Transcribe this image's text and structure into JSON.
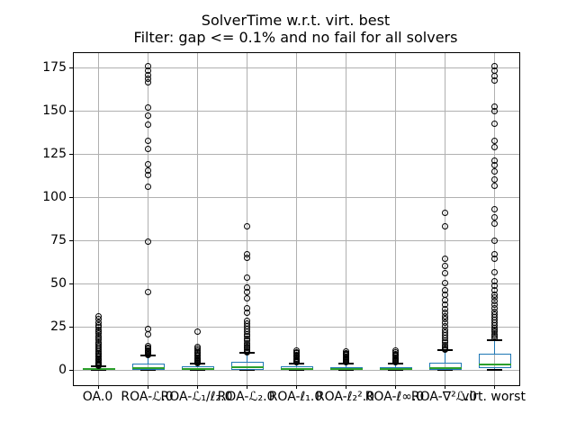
{
  "title": {
    "line1": "SolverTime w.r.t. virt. best",
    "line2": "Filter: gap <= 0.1% and no fail for all solvers"
  },
  "chart_data": {
    "type": "boxplot",
    "title": "SolverTime w.r.t. virt. best",
    "subtitle": "Filter: gap <= 0.1% and no fail for all solvers",
    "grid": true,
    "ylim": [
      -8.7,
      183.8
    ],
    "yticks": [
      0,
      25,
      50,
      75,
      100,
      125,
      150,
      175
    ],
    "categories": [
      "OA.0",
      "ROA-ℒ.0",
      "ROA-ℒ₁/ℓ₂.0",
      "ROA-ℒ₂.0",
      "ROA-ℓ₁.0",
      "ROA-ℓ₂².0",
      "ROA-ℓ∞.0",
      "ROA-∇²ℒ.0",
      "virt. worst"
    ],
    "series": [
      {
        "label": "OA.0",
        "q1": 0.3,
        "median": 0.8,
        "q3": 1.5,
        "whisker_low": 0.05,
        "whisker_high": 2.3,
        "outliers": [
          31,
          29.5,
          27.5,
          26,
          24.8,
          23.6,
          22.4,
          21.2,
          20,
          18.8,
          17.6,
          16.4,
          15.2,
          14,
          13,
          12,
          11,
          10,
          9.2,
          8.4,
          7.6,
          6.9,
          6.2,
          5.5,
          4.9,
          4.3,
          3.7,
          3.1,
          2.6
        ]
      },
      {
        "label": "ROA-ℒ.0",
        "q1": 0.3,
        "median": 1.4,
        "q3": 3.9,
        "whisker_low": 0.05,
        "whisker_high": 8.8,
        "outliers": [
          176,
          173.5,
          171,
          168.5,
          166.5,
          152,
          147.5,
          142,
          133,
          128,
          119.5,
          115.5,
          113,
          106.5,
          74.5,
          45.5,
          24,
          21,
          14,
          13.2,
          12.4,
          11.6,
          10.9,
          10.2,
          9.6,
          9.0
        ]
      },
      {
        "label": "ROA-ℒ₁/ℓ₂.0",
        "q1": 0.3,
        "median": 0.9,
        "q3": 2.1,
        "whisker_low": 0.05,
        "whisker_high": 3.9,
        "outliers": [
          22.5,
          13.3,
          12.3,
          11.4,
          10.5,
          9.7,
          8.9,
          8.2,
          7.5,
          6.9,
          6.3,
          5.8,
          5.3,
          4.8,
          4.4
        ]
      },
      {
        "label": "ROA-ℒ₂.0",
        "q1": 0.3,
        "median": 1.6,
        "q3": 4.9,
        "whisker_low": 0.05,
        "whisker_high": 10,
        "outliers": [
          83.5,
          67,
          65,
          53.5,
          48,
          45.5,
          41.5,
          36,
          33.5,
          28.5,
          27,
          25.5,
          24,
          22.5,
          21,
          19.6,
          18.3,
          17,
          15.8,
          14.7,
          13.7,
          12.8,
          11.9,
          11.1,
          10.4
        ]
      },
      {
        "label": "ROA-ℓ₁.0",
        "q1": 0.3,
        "median": 0.9,
        "q3": 2.1,
        "whisker_low": 0.05,
        "whisker_high": 4,
        "outliers": [
          11.5,
          10.6,
          9.8,
          9,
          8.3,
          7.6,
          7,
          6.4,
          5.9,
          5.4,
          4.9,
          4.5
        ]
      },
      {
        "label": "ROA-ℓ₂².0",
        "q1": 0.3,
        "median": 0.8,
        "q3": 1.9,
        "whisker_low": 0.05,
        "whisker_high": 3.7,
        "outliers": [
          11,
          10.1,
          9.3,
          8.6,
          7.9,
          7.3,
          6.7,
          6.2,
          5.7,
          5.2,
          4.8
        ]
      },
      {
        "label": "ROA-ℓ∞.0",
        "q1": 0.3,
        "median": 0.9,
        "q3": 2.0,
        "whisker_low": 0.05,
        "whisker_high": 3.9,
        "outliers": [
          11.3,
          10.4,
          9.6,
          8.8,
          8.1,
          7.5,
          6.9,
          6.3,
          5.8,
          5.3,
          4.9
        ]
      },
      {
        "label": "ROA-∇²ℒ.0",
        "q1": 0.4,
        "median": 1.4,
        "q3": 4.4,
        "whisker_low": 0.05,
        "whisker_high": 11.5,
        "outliers": [
          91,
          83.5,
          64.5,
          60.5,
          56.5,
          50.5,
          46.5,
          43.5,
          40.5,
          38,
          35.5,
          33.5,
          31.5,
          29.5,
          27.5,
          25.5,
          23.5,
          21.8,
          20.2,
          18.7,
          17.3,
          16,
          14.8,
          13.7,
          12.7,
          12.2
        ]
      },
      {
        "label": "virt. worst",
        "q1": 1.3,
        "median": 3.6,
        "q3": 9.6,
        "whisker_low": 0.2,
        "whisker_high": 17.4,
        "outliers": [
          176,
          173.5,
          170.5,
          167.5,
          152.5,
          150,
          142.5,
          133,
          129,
          121.5,
          119,
          115,
          110.5,
          107,
          93,
          88.5,
          85,
          75,
          67,
          64.5,
          57,
          51.5,
          49,
          46.5,
          44,
          42,
          40,
          38,
          36,
          34,
          32.2,
          30.5,
          29,
          27.5,
          26,
          24.7,
          23.4,
          22.2,
          21,
          19.9,
          18.9
        ]
      }
    ],
    "colors": {
      "box": "#1f77b4",
      "median": "#2ca02c",
      "whisker": "#1f77b4",
      "cap": "#000000",
      "flier": "#000000",
      "grid": "#b0b0b0",
      "spine": "#000000"
    }
  }
}
